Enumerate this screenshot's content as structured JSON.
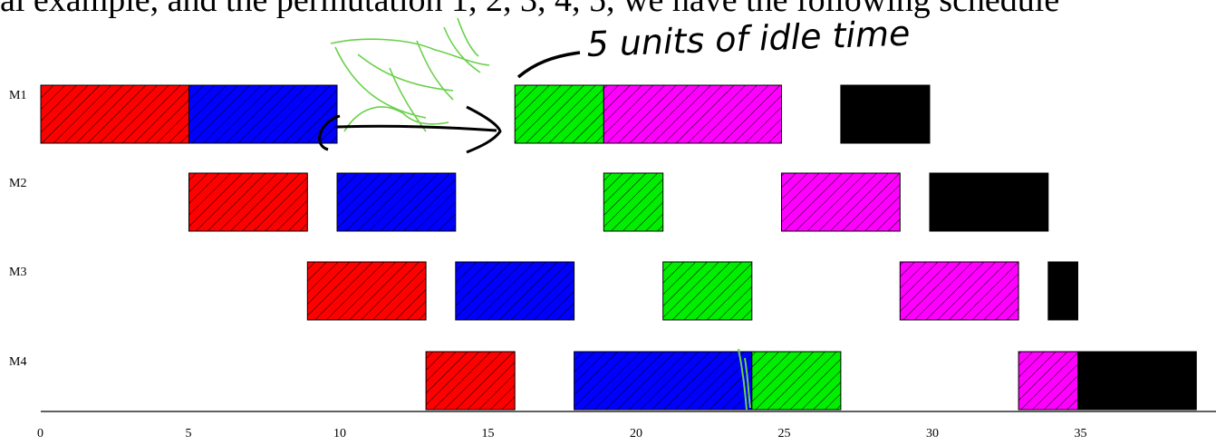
{
  "caption": "al example, and the permutation 1, 2, 3, 4, 5, we have the following schedule",
  "annotation": "5 units of idle time",
  "colors": {
    "red": "#ff0000",
    "blue": "#0000ff",
    "green": "#00ee00",
    "magenta": "#ff00ff",
    "black": "#000000",
    "ink_green": "#6ad04a",
    "ink_black": "#000000"
  },
  "chart_data": {
    "type": "gantt",
    "xlim": [
      0,
      39
    ],
    "x_ticks": [
      0,
      5,
      10,
      15,
      20,
      25,
      30,
      35
    ],
    "machines": [
      "M1",
      "M2",
      "M3",
      "M4"
    ],
    "tasks": [
      {
        "machine": "M1",
        "start": 0,
        "end": 5,
        "color": "red"
      },
      {
        "machine": "M1",
        "start": 5,
        "end": 10,
        "color": "blue"
      },
      {
        "machine": "M1",
        "start": 16,
        "end": 19,
        "color": "green"
      },
      {
        "machine": "M1",
        "start": 19,
        "end": 25,
        "color": "magenta"
      },
      {
        "machine": "M1",
        "start": 27,
        "end": 30,
        "color": "black"
      },
      {
        "machine": "M2",
        "start": 5,
        "end": 9,
        "color": "red"
      },
      {
        "machine": "M2",
        "start": 10,
        "end": 14,
        "color": "blue"
      },
      {
        "machine": "M2",
        "start": 19,
        "end": 21,
        "color": "green"
      },
      {
        "machine": "M2",
        "start": 25,
        "end": 29,
        "color": "magenta"
      },
      {
        "machine": "M2",
        "start": 30,
        "end": 34,
        "color": "black"
      },
      {
        "machine": "M3",
        "start": 9,
        "end": 13,
        "color": "red"
      },
      {
        "machine": "M3",
        "start": 14,
        "end": 18,
        "color": "blue"
      },
      {
        "machine": "M3",
        "start": 21,
        "end": 24,
        "color": "green"
      },
      {
        "machine": "M3",
        "start": 29,
        "end": 33,
        "color": "magenta"
      },
      {
        "machine": "M3",
        "start": 34,
        "end": 35,
        "color": "black"
      },
      {
        "machine": "M4",
        "start": 13,
        "end": 16,
        "color": "red"
      },
      {
        "machine": "M4",
        "start": 18,
        "end": 24,
        "color": "blue"
      },
      {
        "machine": "M4",
        "start": 24,
        "end": 27,
        "color": "green"
      },
      {
        "machine": "M4",
        "start": 33,
        "end": 35,
        "color": "magenta"
      },
      {
        "machine": "M4",
        "start": 35,
        "end": 39,
        "color": "black"
      }
    ]
  }
}
